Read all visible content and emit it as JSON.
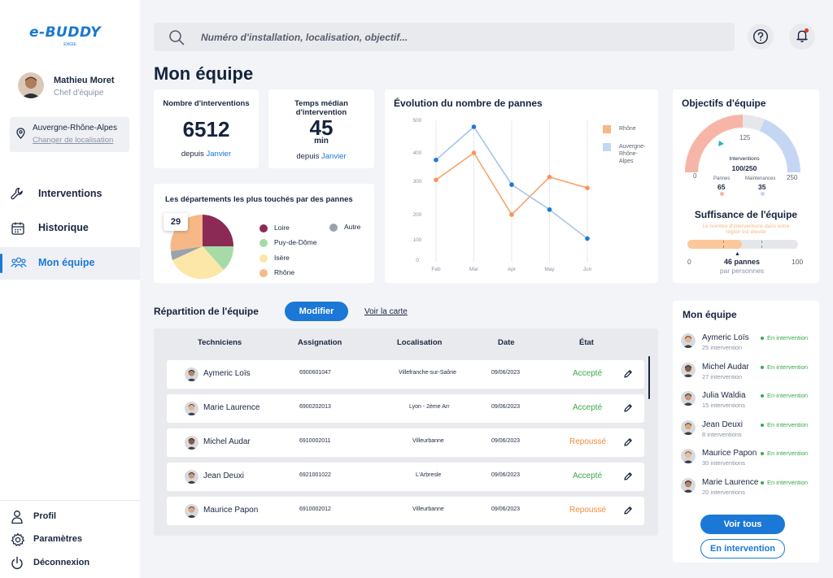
{
  "app": {
    "logo": "e-BUDDY",
    "logo_sub": "ENGIE"
  },
  "user": {
    "name": "Mathieu Moret",
    "role": "Chef d'équipe"
  },
  "location": {
    "region": "Auvergne-Rhône-Alpes",
    "change_label": "Changer de localisation"
  },
  "nav": [
    {
      "label": "Interventions",
      "icon": "wrench-icon"
    },
    {
      "label": "Historique",
      "icon": "calendar-icon"
    },
    {
      "label": "Mon équipe",
      "icon": "team-icon",
      "active": true
    }
  ],
  "bottom_nav": [
    {
      "label": "Profil",
      "icon": "user-icon"
    },
    {
      "label": "Paramètres",
      "icon": "gear-icon"
    },
    {
      "label": "Déconnexion",
      "icon": "power-icon"
    }
  ],
  "search": {
    "placeholder": "Numéro d'installation, localisation, objectif..."
  },
  "page_title": "Mon équipe",
  "stats": {
    "interventions": {
      "title": "Nombre d'interventions",
      "value": "6512",
      "sub_prefix": "depuis",
      "sub_highlight": "Janvier"
    },
    "median": {
      "title": "Temps médian d'intervention",
      "value": "45",
      "unit": "min",
      "sub_prefix": "depuis",
      "sub_highlight": "Janvier"
    }
  },
  "pie": {
    "title": "Les départements les plus touchés par des pannes",
    "tooltip": "29",
    "legend": [
      "Loire",
      "Autre",
      "Puy-de-Dôme",
      "Isère",
      "Rhône"
    ]
  },
  "chart_data": {
    "type": "line",
    "title": "Évolution du nombre de pannes",
    "categories": [
      "Feb",
      "Mar",
      "Apr",
      "May",
      "Jun"
    ],
    "yticks": [
      0,
      100,
      200,
      300,
      400,
      500
    ],
    "ylim": [
      0,
      500
    ],
    "series": [
      {
        "name": "Rhône",
        "color": "#f7a26b",
        "points": [
          [
            0,
            305
          ],
          [
            1,
            400
          ],
          [
            2,
            200
          ],
          [
            3,
            315
          ],
          [
            4,
            280
          ]
        ]
      },
      {
        "name": "Auvergne-Rhône-Alpes",
        "color": "#a9c4ee",
        "points": [
          [
            0,
            375
          ],
          [
            1,
            480
          ],
          [
            2,
            290
          ],
          [
            3,
            215
          ],
          [
            4,
            105
          ]
        ]
      }
    ],
    "legend_position": "right"
  },
  "objectives": {
    "title": "Objectifs d'équipe",
    "gauge": {
      "min": "0",
      "mid": "125",
      "max": "250",
      "label": "Interventions",
      "value": "100/250",
      "pannes_label": "Pannes",
      "pannes_value": "65",
      "maint_label": "Maintenances",
      "maint_value": "35"
    },
    "suff_title": "Suffisance de l'équipe",
    "suff_note_1": "Le nombre d'interventions dans votre",
    "suff_note_2": "région est élevée",
    "scale_min": "0",
    "scale_max": "100",
    "pannes_val": "46 pannes",
    "pannes_sub": "par personnes"
  },
  "team_table": {
    "title": "Répartition de l'équipe",
    "modify": "Modifier",
    "map_link": "Voir la carte",
    "headers": [
      "Techniciens",
      "Assignation",
      "Localisation",
      "Date",
      "État"
    ],
    "rows": [
      {
        "name": "Aymeric Loïs",
        "assign": "6900601047",
        "loc": "Villefranche-sur-Saône",
        "date": "09/06/2023",
        "state": "Accepté"
      },
      {
        "name": "Marie Laurence",
        "assign": "6900202013",
        "loc": "Lyon - 2ème Arr",
        "date": "09/06/2023",
        "state": "Accepté"
      },
      {
        "name": "Michel Audar",
        "assign": "6910002011",
        "loc": "Villeurbanne",
        "date": "09/06/2023",
        "state": "Repoussé"
      },
      {
        "name": "Jean Deuxi",
        "assign": "6921001022",
        "loc": "L'Arbresle",
        "date": "09/06/2023",
        "state": "Accepté"
      },
      {
        "name": "Maurice Papon",
        "assign": "6910002012",
        "loc": "Villeurbanne",
        "date": "09/06/2023",
        "state": "Repoussé"
      }
    ]
  },
  "team_panel": {
    "title": "Mon équipe",
    "members": [
      {
        "name": "Aymeric Loïs",
        "count": "25 intervention",
        "status": "En intervention"
      },
      {
        "name": "Michel Audar",
        "count": "27 intervention",
        "status": "En intervention"
      },
      {
        "name": "Julia Waldia",
        "count": "15 interventions",
        "status": "En intervention"
      },
      {
        "name": "Jean Deuxi",
        "count": "8 interventions",
        "status": "En intervention"
      },
      {
        "name": "Maurice Papon",
        "count": "30 interventions",
        "status": "En intervention"
      },
      {
        "name": "Marie Laurence",
        "count": "20 interventions",
        "status": "En intervention"
      }
    ],
    "see_all": "Voir tous",
    "in_intervention": "En intervention"
  }
}
